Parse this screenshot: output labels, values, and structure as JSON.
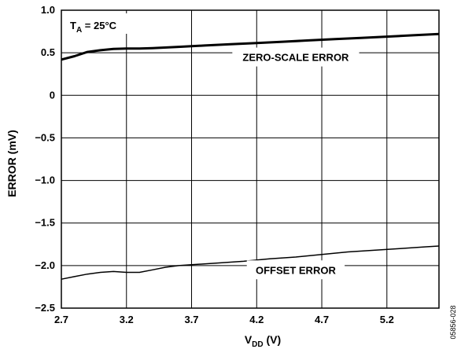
{
  "chart_data": {
    "type": "line",
    "x_title": {
      "main": "V",
      "sub": "DD",
      "unit": " (V)"
    },
    "ylabel": "ERROR (mV)",
    "xlim": [
      2.7,
      5.6
    ],
    "ylim": [
      -2.5,
      1.0
    ],
    "x_ticks": [
      2.7,
      3.2,
      3.7,
      4.2,
      4.7,
      5.2
    ],
    "x_tick_labels": [
      "2.7",
      "3.2",
      "3.7",
      "4.2",
      "4.7",
      "5.2"
    ],
    "y_ticks": [
      1.0,
      0.5,
      0,
      -0.5,
      -1.0,
      -1.5,
      -2.0,
      -2.5
    ],
    "y_tick_labels": [
      "1.0",
      "0.5",
      "0",
      "−0.5",
      "−1.0",
      "−1.5",
      "−2.0",
      "−2.5"
    ],
    "grid": true,
    "condition": {
      "main": "T",
      "sub": "A",
      "rest": " = 25°C"
    },
    "side_code": "05856-028",
    "series": [
      {
        "name": "ZERO-SCALE ERROR",
        "x": [
          2.7,
          2.8,
          2.9,
          3.0,
          3.1,
          3.2,
          3.3,
          3.4,
          3.6,
          3.8,
          4.0,
          4.2,
          4.4,
          4.6,
          4.8,
          5.0,
          5.2,
          5.4,
          5.6
        ],
        "y": [
          0.42,
          0.46,
          0.51,
          0.53,
          0.545,
          0.55,
          0.55,
          0.555,
          0.57,
          0.585,
          0.6,
          0.615,
          0.63,
          0.645,
          0.66,
          0.675,
          0.69,
          0.705,
          0.72
        ],
        "stroke_width": 3,
        "label_at": [
          4.5,
          0.45
        ]
      },
      {
        "name": "OFFSET ERROR",
        "x": [
          2.7,
          2.8,
          2.9,
          3.0,
          3.1,
          3.2,
          3.3,
          3.4,
          3.5,
          3.6,
          3.7,
          3.9,
          4.1,
          4.3,
          4.5,
          4.7,
          4.9,
          5.1,
          5.3,
          5.5,
          5.6
        ],
        "y": [
          -2.16,
          -2.13,
          -2.1,
          -2.08,
          -2.07,
          -2.08,
          -2.08,
          -2.05,
          -2.02,
          -2.0,
          -1.99,
          -1.97,
          -1.95,
          -1.92,
          -1.9,
          -1.87,
          -1.84,
          -1.82,
          -1.8,
          -1.78,
          -1.77
        ],
        "stroke_width": 1.5,
        "label_at": [
          4.5,
          -2.05
        ]
      }
    ]
  }
}
